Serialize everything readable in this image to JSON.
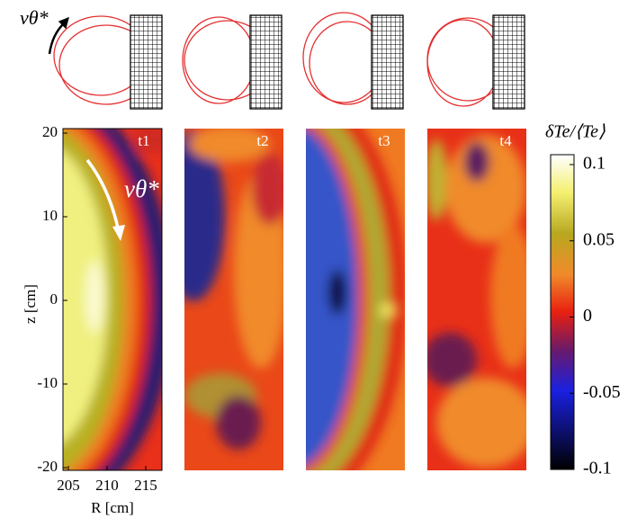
{
  "schematic_label": "vθ*",
  "panels": [
    {
      "label": "t1"
    },
    {
      "label": "t2"
    },
    {
      "label": "t3"
    },
    {
      "label": "t4"
    }
  ],
  "annotation": "vθ*",
  "y_axis": {
    "label": "z [cm]",
    "ticks": [
      20,
      10,
      0,
      -10,
      -20
    ]
  },
  "x_axis": {
    "label": "R [cm]",
    "ticks": [
      205,
      210,
      215
    ]
  },
  "colorbar": {
    "title": "δTe/⟨Te⟩",
    "ticks": [
      0.1,
      0.05,
      0,
      -0.05,
      -0.1
    ]
  }
}
